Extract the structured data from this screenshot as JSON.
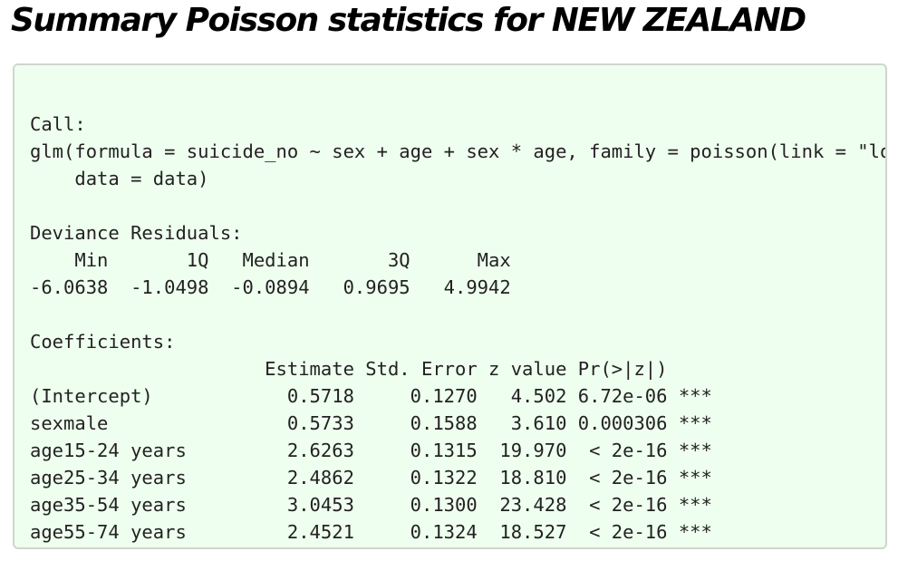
{
  "title": "Summary Poisson statistics for NEW ZEALAND",
  "output": {
    "text": "\nCall:\nglm(formula = suicide_no ~ sex + age + sex * age, family = poisson(link = \"log\"),\n    data = data)\n\nDeviance Residuals:\n    Min       1Q   Median       3Q      Max  \n-6.0638  -1.0498  -0.0894   0.9695   4.9942  \n\nCoefficients:\n                     Estimate Std. Error z value Pr(>|z|)    \n(Intercept)            0.5718     0.1270   4.502 6.72e-06 ***\nsexmale                0.5733     0.1588   3.610 0.000306 ***\nage15-24 years         2.6263     0.1315  19.970  < 2e-16 ***\nage25-34 years         2.4862     0.1322  18.810  < 2e-16 ***\nage35-54 years         3.0453     0.1300  23.428  < 2e-16 ***\nage55-74 years         2.4521     0.1324  18.527  < 2e-16 ***"
  }
}
